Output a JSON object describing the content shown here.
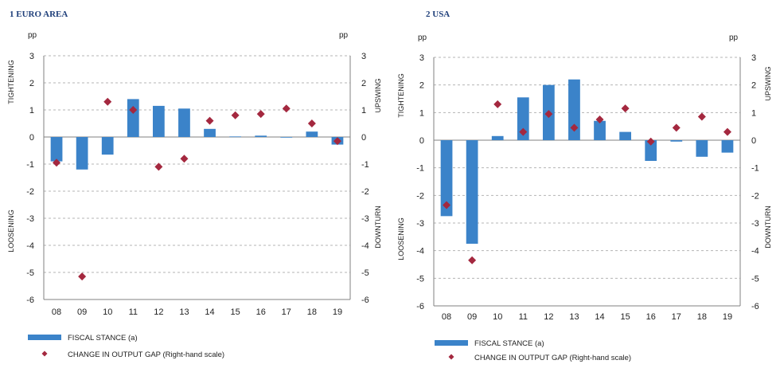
{
  "colors": {
    "bar": "#3b83c9",
    "diamond": "#a4283f",
    "grid": "#b4b4b4",
    "axis": "#808080"
  },
  "chart_data": [
    {
      "type": "bar",
      "title": "1  EURO AREA",
      "left_unit": "pp",
      "right_unit": "pp",
      "left_top_label": "TIGHTENING",
      "left_bottom_label": "LOOSENING",
      "right_top_label": "UPSWING",
      "right_bottom_label": "DOWNTURN",
      "categories": [
        "08",
        "09",
        "10",
        "11",
        "12",
        "13",
        "14",
        "15",
        "16",
        "17",
        "18",
        "19"
      ],
      "ylim": [
        -6,
        3
      ],
      "yticks": [
        3,
        2,
        1,
        0,
        -1,
        -2,
        -3,
        -4,
        -5,
        -6
      ],
      "series": [
        {
          "name": "FISCAL STANCE (a)",
          "kind": "bar",
          "values": [
            -0.9,
            -1.2,
            -0.65,
            1.4,
            1.15,
            1.05,
            0.3,
            0.02,
            0.05,
            0.0,
            0.2,
            -0.28
          ]
        },
        {
          "name": "CHANGE IN OUTPUT GAP (Right-hand scale)",
          "kind": "diamond",
          "values": [
            -0.95,
            -5.15,
            1.3,
            1.0,
            -1.1,
            -0.8,
            0.6,
            0.8,
            0.85,
            1.05,
            0.5,
            -0.15
          ]
        }
      ],
      "legend_position": "bottom-left"
    },
    {
      "type": "bar",
      "title": "2  USA",
      "left_unit": "pp",
      "right_unit": "pp",
      "left_top_label": "TIGHTENING",
      "left_bottom_label": "LOOSENING",
      "right_top_label": "UPSWING",
      "right_bottom_label": "DOWNTURN",
      "categories": [
        "08",
        "09",
        "10",
        "11",
        "12",
        "13",
        "14",
        "15",
        "16",
        "17",
        "18",
        "19"
      ],
      "ylim": [
        -6,
        3
      ],
      "yticks": [
        3,
        2,
        1,
        0,
        -1,
        -2,
        -3,
        -4,
        -5,
        -6
      ],
      "series": [
        {
          "name": "FISCAL STANCE (a)",
          "kind": "bar",
          "values": [
            -2.75,
            -3.75,
            0.15,
            1.55,
            2.0,
            2.2,
            0.7,
            0.3,
            -0.75,
            -0.05,
            -0.6,
            -0.45
          ]
        },
        {
          "name": "CHANGE IN OUTPUT GAP (Right-hand scale)",
          "kind": "diamond",
          "values": [
            -2.35,
            -4.35,
            1.3,
            0.3,
            0.95,
            0.45,
            0.75,
            1.15,
            -0.05,
            0.45,
            0.85,
            0.3
          ]
        }
      ],
      "legend_position": "bottom-left"
    }
  ]
}
